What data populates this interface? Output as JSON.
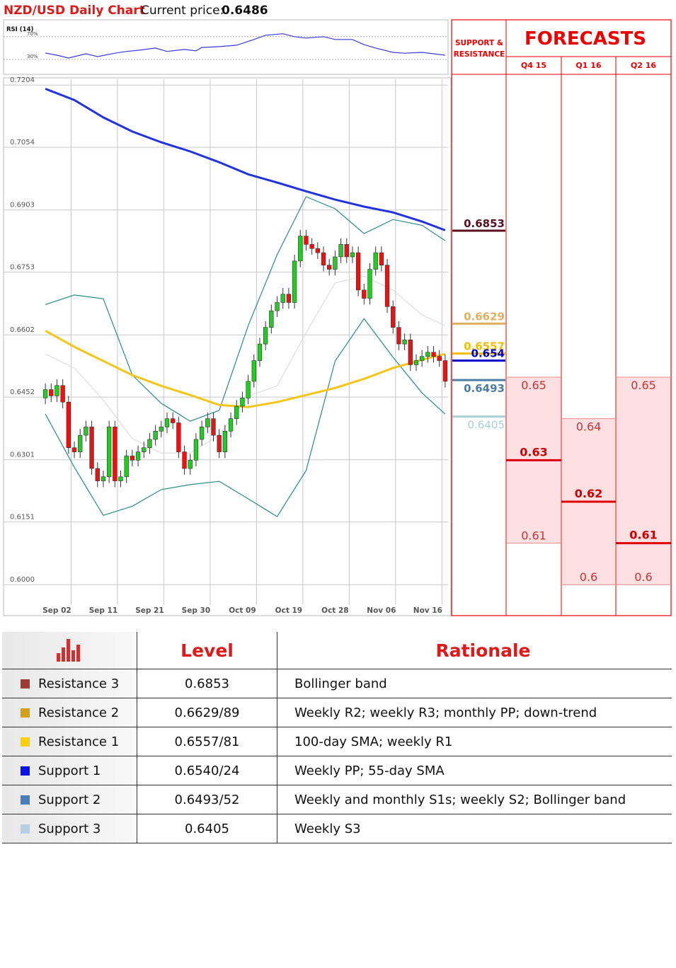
{
  "title": "NZD/USD Daily Chart",
  "current_price_label": "Current price:",
  "current_price": 0.6486,
  "chart_data": [
    {
      "type": "line",
      "title": "RSI (14)",
      "color": "#3a3adf",
      "x": [
        0,
        2,
        4,
        7,
        9,
        12,
        14,
        16,
        19,
        21,
        24,
        26,
        27,
        30,
        33,
        36,
        38,
        41,
        43,
        45,
        48,
        50,
        53,
        55,
        57,
        60,
        62,
        65,
        67,
        69
      ],
      "values": [
        41.25,
        37.5,
        32.5,
        40,
        35,
        41,
        44,
        46,
        50,
        44,
        47.5,
        45,
        51,
        52.5,
        55,
        65,
        72.5,
        75,
        70,
        67.5,
        70,
        65,
        65,
        56,
        50,
        42.5,
        41,
        42.5,
        40,
        37.5
      ],
      "xlim": [
        -0.5,
        69.5
      ],
      "ylim": [
        4,
        97
      ],
      "yticks": [
        {
          "value": 70,
          "label": "70%"
        },
        {
          "value": 30,
          "label": "30%"
        }
      ]
    },
    {
      "type": "candlestick",
      "up_color": "#22cc22",
      "down_color": "#ee1111",
      "grid": true,
      "categories": [
        null,
        null,
        "Sep 02",
        null,
        null,
        null,
        null,
        null,
        null,
        null,
        "Sep 11",
        null,
        null,
        null,
        null,
        null,
        null,
        null,
        "Sep 21",
        null,
        null,
        null,
        null,
        null,
        null,
        null,
        "Sep 30",
        null,
        null,
        null,
        null,
        null,
        null,
        null,
        "Oct 09",
        null,
        null,
        null,
        null,
        null,
        null,
        null,
        "Oct 19",
        null,
        null,
        null,
        null,
        null,
        null,
        null,
        "Oct 28",
        null,
        null,
        null,
        null,
        null,
        null,
        null,
        "Nov 06",
        null,
        null,
        null,
        null,
        null,
        null,
        null,
        "Nov 16",
        null,
        null,
        null
      ],
      "open": [
        0.645,
        0.647,
        0.6455,
        0.648,
        0.644,
        0.633,
        0.632,
        0.636,
        0.638,
        0.628,
        0.625,
        0.626,
        0.638,
        0.625,
        0.626,
        0.631,
        0.63,
        0.632,
        0.633,
        0.635,
        0.637,
        0.638,
        0.64,
        0.639,
        0.632,
        0.628,
        0.63,
        0.635,
        0.638,
        0.64,
        0.636,
        0.632,
        0.637,
        0.64,
        0.643,
        0.645,
        0.649,
        0.654,
        0.658,
        0.662,
        0.666,
        0.668,
        0.67,
        0.668,
        0.678,
        0.684,
        0.682,
        0.681,
        0.68,
        0.677,
        0.676,
        0.679,
        0.682,
        0.679,
        0.68,
        0.671,
        0.669,
        0.676,
        0.68,
        0.677,
        0.667,
        0.662,
        0.658,
        0.659,
        0.653,
        0.654,
        0.655,
        0.656,
        0.655,
        0.654
      ],
      "high": [
        0.6485,
        0.6485,
        0.6495,
        0.6495,
        0.6455,
        0.6345,
        0.6375,
        0.6395,
        0.6395,
        0.6295,
        0.6275,
        0.6395,
        0.6395,
        0.6275,
        0.6325,
        0.6325,
        0.6335,
        0.6345,
        0.6365,
        0.6385,
        0.6395,
        0.6415,
        0.6415,
        0.6405,
        0.6335,
        0.6315,
        0.6365,
        0.6395,
        0.6415,
        0.6415,
        0.6375,
        0.6385,
        0.6415,
        0.6445,
        0.6465,
        0.6505,
        0.6555,
        0.6595,
        0.6635,
        0.6675,
        0.6695,
        0.6715,
        0.6715,
        0.6795,
        0.6855,
        0.6855,
        0.6835,
        0.6825,
        0.6815,
        0.6785,
        0.6805,
        0.6835,
        0.6835,
        0.6815,
        0.6815,
        0.6725,
        0.6775,
        0.6815,
        0.6815,
        0.6785,
        0.6685,
        0.6635,
        0.6605,
        0.6605,
        0.6555,
        0.6565,
        0.6575,
        0.6575,
        0.6565,
        0.6555
      ],
      "low": [
        0.6435,
        0.644,
        0.644,
        0.6425,
        0.6315,
        0.6305,
        0.6305,
        0.6345,
        0.6265,
        0.6235,
        0.6235,
        0.6245,
        0.6235,
        0.6235,
        0.6245,
        0.6285,
        0.6285,
        0.6305,
        0.6315,
        0.6335,
        0.6355,
        0.6365,
        0.6375,
        0.6305,
        0.6265,
        0.6265,
        0.6285,
        0.6335,
        0.6365,
        0.6345,
        0.6305,
        0.6305,
        0.6355,
        0.6385,
        0.6415,
        0.6435,
        0.6475,
        0.6525,
        0.6565,
        0.6605,
        0.6645,
        0.6665,
        0.6665,
        0.6665,
        0.6765,
        0.6805,
        0.6795,
        0.6785,
        0.6755,
        0.6745,
        0.6745,
        0.6775,
        0.6775,
        0.6775,
        0.6695,
        0.6675,
        0.6675,
        0.6745,
        0.6755,
        0.6655,
        0.6605,
        0.6565,
        0.6565,
        0.6515,
        0.6515,
        0.6525,
        0.6535,
        0.6535,
        0.6525,
        0.6475
      ],
      "close": [
        0.647,
        0.6455,
        0.648,
        0.644,
        0.633,
        0.632,
        0.636,
        0.638,
        0.628,
        0.625,
        0.626,
        0.638,
        0.625,
        0.626,
        0.631,
        0.63,
        0.632,
        0.633,
        0.635,
        0.637,
        0.638,
        0.64,
        0.639,
        0.632,
        0.628,
        0.63,
        0.635,
        0.638,
        0.64,
        0.636,
        0.632,
        0.637,
        0.64,
        0.643,
        0.645,
        0.649,
        0.654,
        0.658,
        0.662,
        0.666,
        0.668,
        0.67,
        0.668,
        0.678,
        0.684,
        0.682,
        0.681,
        0.68,
        0.677,
        0.676,
        0.679,
        0.682,
        0.679,
        0.68,
        0.671,
        0.669,
        0.676,
        0.68,
        0.677,
        0.667,
        0.662,
        0.658,
        0.659,
        0.653,
        0.654,
        0.655,
        0.656,
        0.655,
        0.654,
        0.649
      ],
      "series": [
        {
          "color": "#d8d8d8",
          "x": [
            0,
            5,
            10,
            15,
            20,
            25,
            30,
            35,
            40,
            45,
            50,
            55,
            60,
            65,
            69
          ],
          "values": [
            0.6556,
            0.6522,
            0.6445,
            0.6352,
            0.6317,
            0.6317,
            0.636,
            0.6454,
            0.6479,
            0.6607,
            0.6727,
            0.6744,
            0.671,
            0.665,
            0.6624
          ]
        },
        {
          "color": "#2a8a8a",
          "x": [
            0,
            5,
            10,
            15,
            20,
            25,
            30,
            35,
            40,
            45,
            50,
            55,
            60,
            65,
            69
          ],
          "values": [
            0.6675,
            0.6698,
            0.6689,
            0.6505,
            0.6437,
            0.6394,
            0.642,
            0.6624,
            0.6795,
            0.6935,
            0.6906,
            0.6846,
            0.688,
            0.6866,
            0.6829
          ]
        },
        {
          "color": "#2a8a8a",
          "x": [
            0,
            5,
            10,
            15,
            20,
            25,
            30,
            35,
            40,
            45,
            50,
            55,
            60,
            65,
            69
          ],
          "values": [
            0.6411,
            0.6283,
            0.6167,
            0.6189,
            0.6229,
            0.6241,
            0.6249,
            0.6207,
            0.6164,
            0.6275,
            0.6539,
            0.6641,
            0.6548,
            0.6462,
            0.6411
          ]
        },
        {
          "color": "#f5c518",
          "x": [
            0,
            5,
            10,
            15,
            20,
            25,
            30,
            35,
            40,
            45,
            50,
            55,
            60,
            65,
            69
          ],
          "values": [
            0.6612,
            0.6573,
            0.6539,
            0.6505,
            0.6479,
            0.6457,
            0.6433,
            0.6428,
            0.644,
            0.6457,
            0.6474,
            0.6496,
            0.6522,
            0.6542,
            0.6556
          ]
        },
        {
          "color": "#2233dd",
          "x": [
            0,
            5,
            10,
            15,
            20,
            25,
            30,
            35,
            40,
            45,
            50,
            55,
            60,
            65,
            69
          ],
          "values": [
            0.7195,
            0.7168,
            0.7126,
            0.7092,
            0.7066,
            0.7044,
            0.7018,
            0.6989,
            0.6969,
            0.6948,
            0.6928,
            0.6911,
            0.6897,
            0.6875,
            0.6854
          ]
        }
      ],
      "xlim": [
        -0.5,
        69.5
      ],
      "ylim": [
        0.5968,
        0.7218
      ],
      "yticks": [
        0.7204,
        0.7054,
        0.6903,
        0.6753,
        0.6602,
        0.6452,
        0.6301,
        0.6151,
        {
          "value": 0.6,
          "label": "0.6000"
        }
      ]
    }
  ],
  "support_resistance": {
    "title": "SUPPORT & RESISTANCE",
    "levels": [
      {
        "value": 0.6853,
        "color": "#5a0f1e"
      },
      {
        "value": 0.6629,
        "color": "#e0b060"
      },
      {
        "value": 0.6557,
        "color": "#f0c000"
      },
      {
        "value": 0.654,
        "color": "#0000cc"
      },
      {
        "value": 0.6493,
        "color": "#4a7ea8"
      },
      {
        "value": 0.6405,
        "color": "#a8d0d6"
      }
    ]
  },
  "forecasts": {
    "title": "FORECASTS",
    "periods": [
      {
        "label": "Q4 15",
        "high": 0.65,
        "target": 0.63,
        "low": 0.61
      },
      {
        "label": "Q1 16",
        "high": 0.64,
        "target": 0.62,
        "low": 0.6
      },
      {
        "label": "Q2 16",
        "high": 0.65,
        "target": 0.61,
        "low": 0.6
      }
    ]
  },
  "table": {
    "header": [
      "Level",
      "Rationale"
    ],
    "rows": [
      {
        "color": "#9e3b33",
        "name": "Resistance 3",
        "level": "0.6853",
        "rationale": "Bollinger band"
      },
      {
        "color": "#d4a017",
        "name": "Resistance 2",
        "level": "0.6629/89",
        "rationale": "Weekly R2; weekly R3; monthly PP; down-trend"
      },
      {
        "color": "#ffd000",
        "name": "Resistance 1",
        "level": "0.6557/81",
        "rationale": "100-day SMA; weekly R1"
      },
      {
        "color": "#0a14e6",
        "name": "Support 1",
        "level": "0.6540/24",
        "rationale": "Weekly PP; 55-day SMA"
      },
      {
        "color": "#4a7ebb",
        "name": "Support 2",
        "level": "0.6493/52",
        "rationale": "Weekly and monthly S1s; weekly S2; Bollinger band"
      },
      {
        "color": "#b9cde5",
        "name": "Support 3",
        "level": "0.6405",
        "rationale": "Weekly S3"
      }
    ]
  }
}
